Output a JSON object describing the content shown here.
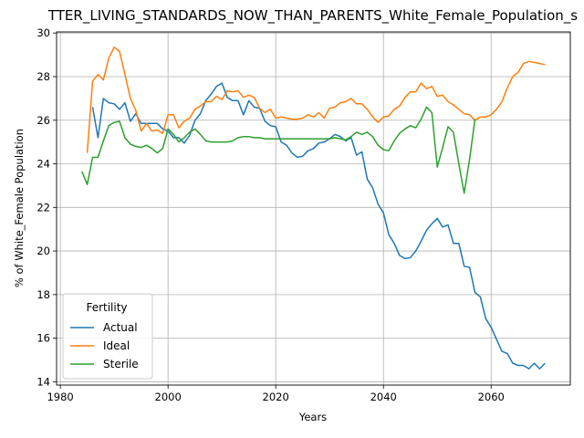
{
  "chart_data": {
    "type": "line",
    "title": "TTER_LIVING_STANDARDS_NOW_THAN_PARENTS_White_Female_Population_s",
    "xlabel": "Years",
    "ylabel": "% of White_Female Population",
    "xlim": [
      1979.3,
      2074.7
    ],
    "ylim": [
      13.85,
      30.05
    ],
    "xticks": [
      1980,
      2000,
      2020,
      2040,
      2060
    ],
    "xtick_labels": [
      "1980",
      "2000",
      "2020",
      "2040",
      "2060"
    ],
    "yticks": [
      14,
      16,
      18,
      20,
      22,
      24,
      26,
      28,
      30
    ],
    "ytick_labels": [
      "14",
      "16",
      "18",
      "20",
      "22",
      "24",
      "26",
      "28",
      "30"
    ],
    "grid": true,
    "legend": {
      "title": "Fertility",
      "placement": "lower-left"
    },
    "series": [
      {
        "name": "Actual",
        "color": "#1f77b4",
        "x": [
          1986,
          1987,
          1988,
          1989,
          1990,
          1991,
          1992,
          1993,
          1994,
          1995,
          1996,
          1997,
          1998,
          1999,
          2000,
          2001,
          2002,
          2003,
          2004,
          2005,
          2006,
          2007,
          2008,
          2009,
          2010,
          2011,
          2012,
          2013,
          2014,
          2015,
          2016,
          2017,
          2018,
          2019,
          2020,
          2021,
          2022,
          2023,
          2024,
          2025,
          2026,
          2027,
          2028,
          2029,
          2030,
          2031,
          2032,
          2033,
          2034,
          2035,
          2036,
          2037,
          2038,
          2039,
          2040,
          2041,
          2042,
          2043,
          2044,
          2045,
          2046,
          2047,
          2048,
          2049,
          2050,
          2051,
          2052,
          2053,
          2054,
          2055,
          2056,
          2057,
          2058,
          2059,
          2060,
          2061,
          2062,
          2063,
          2064,
          2065,
          2066,
          2067,
          2068,
          2069,
          2070
        ],
        "values": [
          26.6,
          25.2,
          27.0,
          26.8,
          26.75,
          26.5,
          26.8,
          25.95,
          26.3,
          25.85,
          25.85,
          25.85,
          25.85,
          25.6,
          25.5,
          25.2,
          25.2,
          24.95,
          25.3,
          26.0,
          26.3,
          26.9,
          27.2,
          27.55,
          27.7,
          27.05,
          26.9,
          26.9,
          26.25,
          26.9,
          26.6,
          26.55,
          25.95,
          25.75,
          25.7,
          25.0,
          24.85,
          24.5,
          24.3,
          24.35,
          24.6,
          24.7,
          24.95,
          25.0,
          25.15,
          25.35,
          25.25,
          25.05,
          25.2,
          24.4,
          24.55,
          23.3,
          22.9,
          22.15,
          21.75,
          20.75,
          20.35,
          19.8,
          19.65,
          19.7,
          20.0,
          20.45,
          20.95,
          21.25,
          21.5,
          21.1,
          21.2,
          20.35,
          20.35,
          19.3,
          19.25,
          18.1,
          17.9,
          16.9,
          16.5,
          15.95,
          15.4,
          15.3,
          14.85,
          14.75,
          14.75,
          14.6,
          14.85,
          14.6,
          14.85
        ]
      },
      {
        "name": "Ideal",
        "color": "#ff7f0e",
        "x": [
          1985,
          1986,
          1987,
          1988,
          1989,
          1990,
          1991,
          1992,
          1993,
          1994,
          1995,
          1996,
          1997,
          1998,
          1999,
          2000,
          2001,
          2002,
          2003,
          2004,
          2005,
          2006,
          2007,
          2008,
          2009,
          2010,
          2011,
          2012,
          2013,
          2014,
          2015,
          2016,
          2017,
          2018,
          2019,
          2020,
          2021,
          2022,
          2023,
          2024,
          2025,
          2026,
          2027,
          2028,
          2029,
          2030,
          2031,
          2032,
          2033,
          2034,
          2035,
          2036,
          2037,
          2038,
          2039,
          2040,
          2041,
          2042,
          2043,
          2044,
          2045,
          2046,
          2047,
          2048,
          2049,
          2050,
          2051,
          2052,
          2053,
          2054,
          2055,
          2056,
          2057,
          2058,
          2059,
          2060,
          2061,
          2062,
          2063,
          2064,
          2065,
          2066,
          2067,
          2068,
          2069,
          2070
        ],
        "values": [
          24.5,
          27.8,
          28.1,
          27.85,
          28.85,
          29.35,
          29.15,
          28.1,
          27.0,
          26.45,
          25.5,
          25.85,
          25.5,
          25.55,
          25.4,
          26.25,
          26.25,
          25.65,
          25.95,
          26.1,
          26.5,
          26.65,
          26.85,
          26.85,
          27.1,
          26.95,
          27.35,
          27.3,
          27.35,
          27.05,
          27.15,
          27.05,
          26.55,
          26.35,
          26.5,
          26.1,
          26.15,
          26.1,
          26.05,
          26.05,
          26.1,
          26.25,
          26.15,
          26.35,
          26.1,
          26.55,
          26.6,
          26.8,
          26.85,
          27.0,
          26.75,
          26.75,
          26.5,
          26.15,
          25.9,
          26.15,
          26.2,
          26.5,
          26.65,
          27.05,
          27.3,
          27.3,
          27.7,
          27.45,
          27.55,
          27.1,
          27.15,
          26.85,
          26.7,
          26.5,
          26.3,
          26.25,
          26.0,
          26.15,
          26.15,
          26.25,
          26.5,
          26.85,
          27.5,
          28.0,
          28.2,
          28.6,
          28.7,
          28.65,
          28.6,
          28.55
        ]
      },
      {
        "name": "Sterile",
        "color": "#2ca02c",
        "x": [
          1984,
          1985,
          1986,
          1987,
          1988,
          1989,
          1990,
          1991,
          1992,
          1993,
          1994,
          1995,
          1996,
          1997,
          1998,
          1999,
          2000,
          2001,
          2002,
          2003,
          2004,
          2005,
          2006,
          2007,
          2008,
          2009,
          2010,
          2011,
          2012,
          2013,
          2014,
          2015,
          2016,
          2017,
          2018,
          2019,
          2020,
          2021,
          2022,
          2023,
          2024,
          2025,
          2026,
          2027,
          2028,
          2029,
          2030,
          2031,
          2032,
          2033,
          2034,
          2035,
          2036,
          2037,
          2038,
          2039,
          2040,
          2041,
          2042,
          2043,
          2044,
          2045,
          2046,
          2047,
          2048,
          2049,
          2050,
          2051,
          2052,
          2053,
          2054,
          2055,
          2056,
          2057
        ],
        "values": [
          23.65,
          23.05,
          24.3,
          24.3,
          25.05,
          25.75,
          25.9,
          25.95,
          25.2,
          24.9,
          24.8,
          24.75,
          24.85,
          24.7,
          24.5,
          24.7,
          25.6,
          25.35,
          25.0,
          25.2,
          25.45,
          25.6,
          25.35,
          25.05,
          25.0,
          25.0,
          25.0,
          25.0,
          25.05,
          25.2,
          25.25,
          25.25,
          25.2,
          25.2,
          25.15,
          25.15,
          25.15,
          25.15,
          25.15,
          25.15,
          25.15,
          25.15,
          25.15,
          25.15,
          25.15,
          25.15,
          25.15,
          25.2,
          25.15,
          25.1,
          25.25,
          25.45,
          25.35,
          25.45,
          25.25,
          24.85,
          24.65,
          24.6,
          25.05,
          25.4,
          25.6,
          25.75,
          25.65,
          26.05,
          26.6,
          26.35,
          23.85,
          24.75,
          25.7,
          25.45,
          24.0,
          22.65,
          24.2,
          26.05
        ]
      }
    ]
  }
}
